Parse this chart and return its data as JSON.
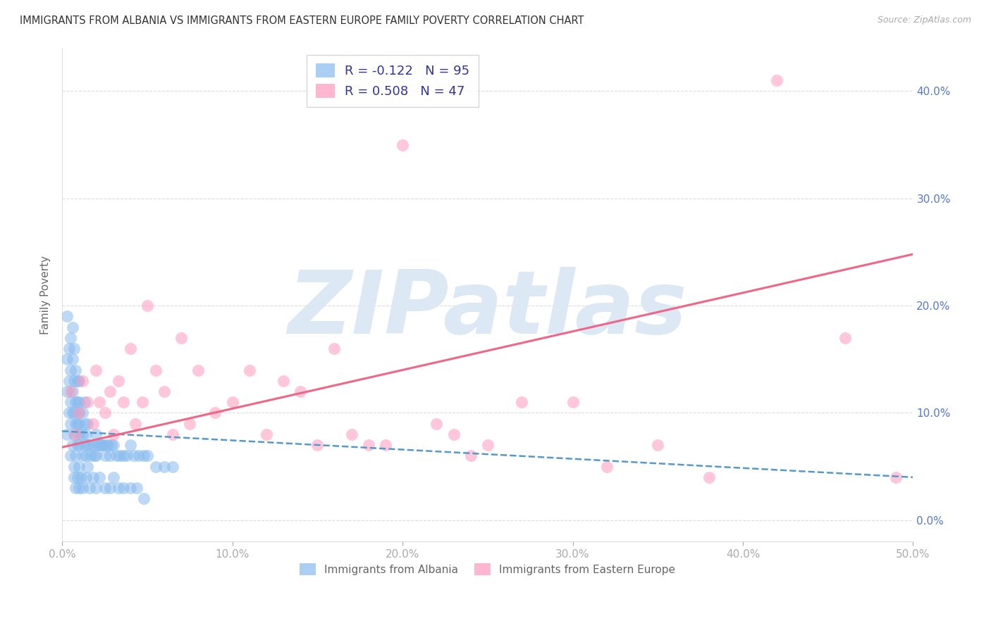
{
  "title": "IMMIGRANTS FROM ALBANIA VS IMMIGRANTS FROM EASTERN EUROPE FAMILY POVERTY CORRELATION CHART",
  "source": "Source: ZipAtlas.com",
  "ylabel": "Family Poverty",
  "xlim": [
    0.0,
    0.5
  ],
  "ylim": [
    -0.02,
    0.44
  ],
  "yticks": [
    0.0,
    0.1,
    0.2,
    0.3,
    0.4
  ],
  "xticks": [
    0.0,
    0.1,
    0.2,
    0.3,
    0.4,
    0.5
  ],
  "legend1_label": "R = -0.122   N = 95",
  "legend2_label": "R = 0.508   N = 47",
  "series1_color": "#88bbee",
  "series2_color": "#ff99bb",
  "trend1_color": "#5599cc",
  "trend2_color": "#ee6688",
  "watermark": "ZIPatlas",
  "watermark_color": "#dde8f5",
  "axis_label_color": "#5577cc",
  "grid_color": "#dddddd",
  "trend1_x0": 0.0,
  "trend1_y0": 0.083,
  "trend1_x1": 0.5,
  "trend1_y1": 0.04,
  "trend2_x0": 0.0,
  "trend2_y0": 0.068,
  "trend2_x1": 0.5,
  "trend2_y1": 0.248,
  "series1_x": [
    0.003,
    0.003,
    0.003,
    0.003,
    0.004,
    0.004,
    0.004,
    0.005,
    0.005,
    0.005,
    0.005,
    0.005,
    0.006,
    0.006,
    0.006,
    0.006,
    0.006,
    0.007,
    0.007,
    0.007,
    0.007,
    0.007,
    0.008,
    0.008,
    0.008,
    0.008,
    0.009,
    0.009,
    0.009,
    0.009,
    0.01,
    0.01,
    0.01,
    0.01,
    0.01,
    0.01,
    0.01,
    0.012,
    0.012,
    0.012,
    0.013,
    0.013,
    0.013,
    0.014,
    0.014,
    0.015,
    0.015,
    0.015,
    0.016,
    0.017,
    0.018,
    0.019,
    0.02,
    0.02,
    0.021,
    0.022,
    0.023,
    0.024,
    0.025,
    0.026,
    0.027,
    0.028,
    0.029,
    0.03,
    0.032,
    0.034,
    0.036,
    0.038,
    0.04,
    0.042,
    0.045,
    0.048,
    0.05,
    0.055,
    0.06,
    0.065,
    0.007,
    0.008,
    0.009,
    0.01,
    0.011,
    0.012,
    0.014,
    0.016,
    0.018,
    0.02,
    0.022,
    0.025,
    0.028,
    0.03,
    0.033,
    0.036,
    0.04,
    0.044,
    0.048
  ],
  "series1_y": [
    0.08,
    0.12,
    0.15,
    0.19,
    0.1,
    0.13,
    0.16,
    0.06,
    0.09,
    0.11,
    0.14,
    0.17,
    0.07,
    0.1,
    0.12,
    0.15,
    0.18,
    0.05,
    0.08,
    0.1,
    0.13,
    0.16,
    0.06,
    0.09,
    0.11,
    0.14,
    0.07,
    0.09,
    0.11,
    0.13,
    0.05,
    0.07,
    0.09,
    0.11,
    0.13,
    0.08,
    0.1,
    0.06,
    0.08,
    0.1,
    0.07,
    0.09,
    0.11,
    0.06,
    0.08,
    0.05,
    0.07,
    0.09,
    0.07,
    0.06,
    0.07,
    0.06,
    0.06,
    0.08,
    0.07,
    0.07,
    0.07,
    0.07,
    0.06,
    0.07,
    0.07,
    0.06,
    0.07,
    0.07,
    0.06,
    0.06,
    0.06,
    0.06,
    0.07,
    0.06,
    0.06,
    0.06,
    0.06,
    0.05,
    0.05,
    0.05,
    0.04,
    0.03,
    0.04,
    0.03,
    0.04,
    0.03,
    0.04,
    0.03,
    0.04,
    0.03,
    0.04,
    0.03,
    0.03,
    0.04,
    0.03,
    0.03,
    0.03,
    0.03,
    0.02
  ],
  "series2_x": [
    0.005,
    0.008,
    0.01,
    0.012,
    0.015,
    0.018,
    0.02,
    0.022,
    0.025,
    0.028,
    0.03,
    0.033,
    0.036,
    0.04,
    0.043,
    0.047,
    0.05,
    0.055,
    0.06,
    0.065,
    0.07,
    0.075,
    0.08,
    0.09,
    0.1,
    0.11,
    0.12,
    0.13,
    0.14,
    0.15,
    0.16,
    0.17,
    0.18,
    0.19,
    0.2,
    0.22,
    0.23,
    0.24,
    0.25,
    0.27,
    0.3,
    0.32,
    0.35,
    0.38,
    0.42,
    0.46,
    0.49
  ],
  "series2_y": [
    0.12,
    0.08,
    0.1,
    0.13,
    0.11,
    0.09,
    0.14,
    0.11,
    0.1,
    0.12,
    0.08,
    0.13,
    0.11,
    0.16,
    0.09,
    0.11,
    0.2,
    0.14,
    0.12,
    0.08,
    0.17,
    0.09,
    0.14,
    0.1,
    0.11,
    0.14,
    0.08,
    0.13,
    0.12,
    0.07,
    0.16,
    0.08,
    0.07,
    0.07,
    0.35,
    0.09,
    0.08,
    0.06,
    0.07,
    0.11,
    0.11,
    0.05,
    0.07,
    0.04,
    0.41,
    0.17,
    0.04
  ]
}
